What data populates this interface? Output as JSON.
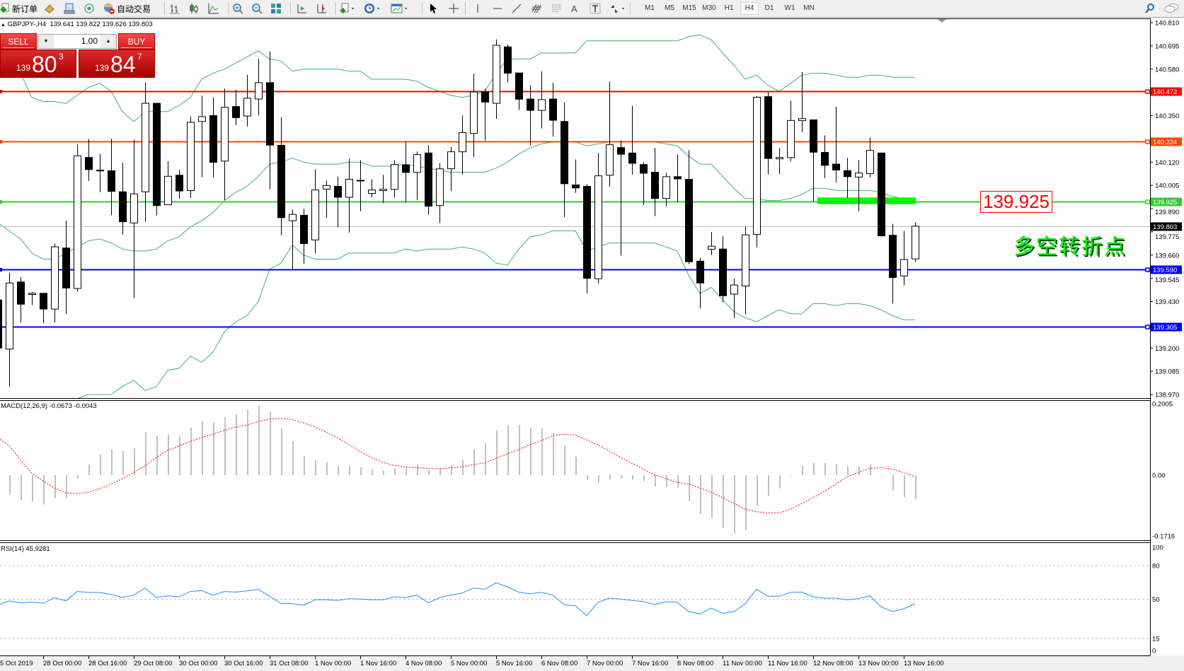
{
  "toolbar": {
    "new_order": "新订单",
    "auto_trading": "自动交易",
    "timeframes": [
      "M1",
      "M5",
      "M15",
      "M30",
      "H1",
      "H4",
      "D1",
      "W1",
      "MN"
    ],
    "selected_timeframe": "H4",
    "icons": [
      "new-order-icon",
      "history-icon",
      "terminal-icon",
      "signal-icon",
      "auto-trading-icon",
      "bar-chart-icon",
      "candlestick-icon",
      "line-chart-icon",
      "zoom-in-icon",
      "zoom-out-icon",
      "tile-windows-icon",
      "chart-shift-icon",
      "autoscroll-icon",
      "indicators-icon",
      "periods-icon",
      "templates-icon",
      "cursor-icon",
      "crosshair-icon",
      "vertical-line-icon",
      "horizontal-line-icon",
      "trendline-icon",
      "fibonacci-icon",
      "fibo-fan-icon",
      "text-icon",
      "text-label-icon",
      "arrows-icon",
      "search-icon",
      "chat-icon"
    ]
  },
  "header": {
    "symbol": "GBPJPY-,H4",
    "ohlc": "139.641 139.822 139.626 139.803"
  },
  "trade_panel": {
    "sell_label": "SELL",
    "buy_label": "BUY",
    "lots": "1.00",
    "sell_price": {
      "prefix": "139",
      "big": "80",
      "sup": "3"
    },
    "buy_price": {
      "prefix": "139",
      "big": "84",
      "sup": "7"
    },
    "color": "#d42020"
  },
  "annotations": {
    "price_box": "139.925",
    "pivot_text": "多空转折点",
    "zone_color": "#00ff00"
  },
  "indicators": {
    "macd_label": "MACD(12,26,9) -0.0673 -0.0043",
    "rsi_label": "RSI(14) 45.9281"
  },
  "chart_data": {
    "type": "candlestick",
    "symbol": "GBPJPY",
    "timeframe": "H4",
    "price_axis": {
      "ylim": [
        138.97,
        140.81
      ],
      "ticks": [
        "140.810",
        "140.695",
        "140.580",
        "140.350",
        "140.120",
        "140.005",
        "139.890",
        "139.775",
        "139.660",
        "139.545",
        "139.430",
        "139.200",
        "139.085",
        "138.970"
      ]
    },
    "time_axis_labels": [
      "5 Oct 2019",
      "28 Oct 00:00",
      "28 Oct 16:00",
      "29 Oct 08:00",
      "30 Oct 00:00",
      "30 Oct 16:00",
      "31 Oct 08:00",
      "1 Nov 00:00",
      "1 Nov 16:00",
      "4 Nov 08:00",
      "5 Nov 00:00",
      "5 Nov 16:00",
      "6 Nov 08:00",
      "7 Nov 00:00",
      "7 Nov 16:00",
      "8 Nov 08:00",
      "11 Nov 00:00",
      "11 Nov 16:00",
      "12 Nov 08:00",
      "13 Nov 00:00",
      "13 Nov 16:00"
    ],
    "ohlc": [
      [
        139.438,
        139.47,
        139.16,
        139.2
      ],
      [
        139.195,
        139.573,
        139.009,
        139.522
      ],
      [
        139.527,
        139.551,
        139.327,
        139.417
      ],
      [
        139.465,
        139.477,
        139.413,
        139.471
      ],
      [
        139.471,
        139.471,
        139.323,
        139.393
      ],
      [
        139.393,
        139.717,
        139.327,
        139.701
      ],
      [
        139.695,
        139.831,
        139.369,
        139.497
      ],
      [
        139.495,
        140.207,
        139.48,
        140.151
      ],
      [
        140.143,
        140.235,
        140.027,
        140.083
      ],
      [
        140.08,
        140.161,
        139.971,
        140.078
      ],
      [
        140.077,
        140.235,
        139.857,
        139.975
      ],
      [
        139.973,
        140.117,
        139.761,
        139.825
      ],
      [
        139.819,
        140.231,
        139.447,
        139.963
      ],
      [
        139.973,
        140.513,
        139.825,
        140.411
      ],
      [
        140.411,
        140.411,
        139.857,
        139.905
      ],
      [
        139.909,
        140.125,
        139.909,
        140.05
      ],
      [
        140.055,
        140.081,
        139.939,
        139.977
      ],
      [
        139.979,
        140.345,
        139.943,
        140.317
      ],
      [
        140.321,
        140.449,
        140.045,
        140.345
      ],
      [
        140.35,
        140.44,
        140.045,
        140.119
      ],
      [
        140.125,
        140.484,
        139.933,
        140.391
      ],
      [
        140.395,
        140.478,
        140.303,
        140.34
      ],
      [
        140.348,
        140.552,
        140.296,
        140.436
      ],
      [
        140.432,
        140.632,
        140.351,
        140.513
      ],
      [
        140.513,
        140.668,
        139.985,
        140.204
      ],
      [
        140.203,
        140.342,
        139.759,
        139.845
      ],
      [
        139.83,
        139.885,
        139.591,
        139.861
      ],
      [
        139.857,
        139.889,
        139.618,
        139.717
      ],
      [
        139.735,
        140.084,
        139.668,
        139.982
      ],
      [
        139.986,
        140.029,
        139.845,
        140.004
      ],
      [
        140.0,
        140.048,
        139.797,
        139.946
      ],
      [
        139.946,
        140.137,
        139.771,
        140.035
      ],
      [
        140.03,
        140.13,
        139.877,
        140.027
      ],
      [
        139.965,
        140.036,
        139.946,
        139.982
      ],
      [
        139.979,
        140.057,
        139.917,
        139.986
      ],
      [
        139.985,
        140.13,
        139.945,
        140.108
      ],
      [
        140.106,
        140.221,
        139.921,
        140.069
      ],
      [
        140.069,
        140.172,
        139.933,
        140.157
      ],
      [
        140.165,
        140.203,
        139.859,
        139.902
      ],
      [
        139.905,
        140.115,
        139.818,
        140.087
      ],
      [
        140.087,
        140.195,
        139.976,
        140.171
      ],
      [
        140.171,
        140.35,
        140.059,
        140.266
      ],
      [
        140.262,
        140.557,
        140.145,
        140.467
      ],
      [
        140.467,
        140.484,
        140.226,
        140.417
      ],
      [
        140.411,
        140.727,
        140.334,
        140.698
      ],
      [
        140.69,
        140.701,
        140.515,
        140.56
      ],
      [
        140.561,
        140.561,
        140.377,
        140.431
      ],
      [
        140.432,
        140.5,
        140.203,
        140.376
      ],
      [
        140.376,
        140.569,
        140.287,
        140.429
      ],
      [
        140.432,
        140.513,
        140.246,
        140.327
      ],
      [
        140.321,
        140.416,
        139.849,
        140.013
      ],
      [
        140.007,
        140.133,
        139.968,
        139.992
      ],
      [
        140.0,
        140.011,
        139.471,
        139.545
      ],
      [
        139.543,
        140.165,
        139.519,
        140.052
      ],
      [
        140.055,
        140.519,
        139.999,
        140.206
      ],
      [
        140.192,
        140.228,
        139.657,
        140.159
      ],
      [
        140.165,
        140.399,
        140.058,
        140.114
      ],
      [
        140.108,
        140.119,
        139.908,
        140.065
      ],
      [
        140.07,
        140.19,
        139.853,
        139.94
      ],
      [
        139.94,
        140.067,
        139.902,
        140.048
      ],
      [
        140.048,
        140.157,
        139.922,
        140.037
      ],
      [
        140.035,
        140.179,
        139.615,
        139.627
      ],
      [
        139.63,
        139.645,
        139.396,
        139.522
      ],
      [
        139.689,
        139.774,
        139.66,
        139.704
      ],
      [
        139.69,
        139.754,
        139.426,
        139.459
      ],
      [
        139.467,
        139.544,
        139.347,
        139.512
      ],
      [
        139.507,
        139.802,
        139.368,
        139.76
      ],
      [
        139.762,
        140.446,
        139.699,
        140.441
      ],
      [
        140.444,
        140.467,
        140.058,
        140.138
      ],
      [
        140.136,
        140.19,
        140.061,
        140.143
      ],
      [
        140.142,
        140.423,
        140.124,
        140.326
      ],
      [
        140.325,
        140.566,
        140.268,
        140.335
      ],
      [
        140.329,
        140.329,
        139.925,
        140.169
      ],
      [
        140.168,
        140.252,
        140.041,
        140.104
      ],
      [
        140.11,
        140.395,
        140.019,
        140.081
      ],
      [
        140.078,
        140.141,
        139.943,
        140.048
      ],
      [
        140.046,
        140.13,
        139.877,
        140.066
      ],
      [
        140.063,
        140.242,
        140.045,
        140.178
      ],
      [
        140.165,
        140.165,
        139.755,
        139.755
      ],
      [
        139.758,
        139.815,
        139.42,
        139.549
      ],
      [
        139.557,
        139.778,
        139.51,
        139.638
      ],
      [
        139.641,
        139.822,
        139.626,
        139.803
      ]
    ],
    "bollinger": {
      "color": "#3cb371",
      "upper": [
        140.7,
        140.64,
        140.56,
        140.44,
        140.42,
        140.42,
        140.41,
        140.45,
        140.49,
        140.51,
        140.47,
        140.37,
        140.32,
        140.37,
        140.37,
        140.37,
        140.4,
        140.44,
        140.53,
        140.56,
        140.58,
        140.61,
        140.64,
        140.67,
        140.63,
        140.62,
        140.57,
        140.58,
        140.58,
        140.58,
        140.58,
        140.57,
        140.57,
        140.53,
        140.53,
        140.53,
        140.53,
        140.52,
        140.49,
        140.47,
        140.45,
        140.44,
        140.45,
        140.47,
        140.56,
        140.63,
        140.63,
        140.63,
        140.66,
        140.66,
        140.66,
        140.66,
        140.72,
        140.72,
        140.72,
        140.72,
        140.72,
        140.72,
        140.72,
        140.72,
        140.72,
        140.74,
        140.75,
        140.725,
        140.66,
        140.6,
        140.53,
        140.55,
        140.5,
        140.47,
        140.51,
        140.55,
        140.56,
        140.56,
        140.55,
        140.54,
        140.54,
        140.55,
        140.55,
        140.54,
        140.54,
        140.54
      ],
      "middle": [
        139.82,
        139.78,
        139.74,
        139.67,
        139.64,
        139.64,
        139.67,
        139.7,
        139.73,
        139.74,
        139.72,
        139.69,
        139.68,
        139.68,
        139.69,
        139.73,
        139.75,
        139.8,
        139.83,
        139.87,
        139.93,
        139.97,
        140.0,
        140.05,
        140.11,
        140.12,
        140.14,
        140.12,
        140.11,
        140.11,
        140.11,
        140.12,
        140.12,
        140.1,
        140.1,
        140.1,
        140.11,
        140.1,
        140.09,
        140.08,
        140.07,
        140.07,
        140.07,
        140.07,
        140.09,
        140.12,
        140.16,
        140.19,
        140.21,
        140.22,
        140.22,
        140.22,
        140.2,
        140.21,
        140.22,
        140.22,
        140.22,
        140.22,
        140.22,
        140.21,
        140.2,
        140.15,
        140.11,
        140.11,
        140.05,
        139.99,
        139.94,
        139.94,
        139.93,
        139.93,
        139.94,
        139.96,
        139.99,
        139.99,
        139.98,
        139.98,
        139.98,
        139.98,
        139.97,
        139.95,
        139.94,
        139.94
      ],
      "lower": [
        138.94,
        138.92,
        138.92,
        138.9,
        138.86,
        138.86,
        138.93,
        138.95,
        138.97,
        138.97,
        138.97,
        139.01,
        139.04,
        138.99,
        139.01,
        139.09,
        139.1,
        139.16,
        139.13,
        139.18,
        139.28,
        139.33,
        139.36,
        139.43,
        139.59,
        139.62,
        139.71,
        139.66,
        139.64,
        139.64,
        139.64,
        139.67,
        139.67,
        139.67,
        139.67,
        139.67,
        139.69,
        139.68,
        139.69,
        139.69,
        139.69,
        139.7,
        139.69,
        139.67,
        139.62,
        139.61,
        139.69,
        139.75,
        139.76,
        139.78,
        139.78,
        139.78,
        139.68,
        139.7,
        139.72,
        139.72,
        139.72,
        139.72,
        139.72,
        139.7,
        139.68,
        139.56,
        139.47,
        139.5,
        139.44,
        139.38,
        139.35,
        139.33,
        139.36,
        139.39,
        139.37,
        139.37,
        139.42,
        139.42,
        139.41,
        139.42,
        139.42,
        139.41,
        139.39,
        139.36,
        139.34,
        139.34
      ]
    },
    "horizontal_lines": [
      {
        "price": 140.472,
        "label": "140.472",
        "color": "#ff0000"
      },
      {
        "price": 140.224,
        "label": "140.224",
        "color": "#ff4500"
      },
      {
        "price": 139.925,
        "label": "139.925",
        "color": "#32cd32"
      },
      {
        "price": 139.59,
        "label": "139.590",
        "color": "#0000ff"
      },
      {
        "price": 139.305,
        "label": "139.305",
        "color": "#0000ff"
      }
    ],
    "bid_line": {
      "price": 139.803,
      "label": "139.803",
      "color": "#c0c0c0"
    },
    "zone": {
      "price_top": 139.945,
      "price_bottom": 139.912,
      "color": "#00ff00"
    },
    "macd": {
      "params": "12,26,9",
      "ylim": [
        -0.1716,
        0.2005
      ],
      "ticks": [
        "0.2005",
        "0.00",
        "-0.1716"
      ],
      "hist_color": "#c0c0c0",
      "signal_color": "#ff0000",
      "histogram": [
        -0.05,
        -0.056,
        -0.07,
        -0.075,
        -0.083,
        -0.065,
        -0.065,
        -0.01,
        0.03,
        0.058,
        0.072,
        0.068,
        0.076,
        0.121,
        0.111,
        0.114,
        0.109,
        0.134,
        0.152,
        0.148,
        0.163,
        0.171,
        0.184,
        0.195,
        0.179,
        0.132,
        0.096,
        0.054,
        0.042,
        0.036,
        0.025,
        0.025,
        0.022,
        0.017,
        0.012,
        0.019,
        0.021,
        0.03,
        0.015,
        0.018,
        0.028,
        0.042,
        0.072,
        0.09,
        0.126,
        0.141,
        0.141,
        0.134,
        0.132,
        0.119,
        0.084,
        0.052,
        -0.013,
        -0.021,
        -0.013,
        -0.01,
        -0.012,
        -0.017,
        -0.032,
        -0.033,
        -0.035,
        -0.073,
        -0.109,
        -0.121,
        -0.149,
        -0.164,
        -0.155,
        -0.087,
        -0.059,
        -0.037,
        -0.001,
        0.026,
        0.034,
        0.034,
        0.032,
        0.026,
        0.024,
        0.03,
        -0.001,
        -0.043,
        -0.062,
        -0.0673
      ],
      "signal": [
        0.105,
        0.083,
        0.043,
        0.005,
        -0.017,
        -0.036,
        -0.05,
        -0.052,
        -0.048,
        -0.038,
        -0.025,
        -0.01,
        0.007,
        0.027,
        0.05,
        0.07,
        0.082,
        0.095,
        0.106,
        0.115,
        0.126,
        0.135,
        0.141,
        0.151,
        0.158,
        0.16,
        0.156,
        0.147,
        0.136,
        0.121,
        0.105,
        0.086,
        0.066,
        0.05,
        0.036,
        0.027,
        0.023,
        0.021,
        0.019,
        0.018,
        0.021,
        0.023,
        0.03,
        0.034,
        0.048,
        0.06,
        0.072,
        0.086,
        0.097,
        0.111,
        0.115,
        0.113,
        0.099,
        0.085,
        0.068,
        0.05,
        0.033,
        0.017,
        0.001,
        -0.01,
        -0.02,
        -0.025,
        -0.036,
        -0.048,
        -0.063,
        -0.08,
        -0.096,
        -0.103,
        -0.106,
        -0.106,
        -0.096,
        -0.08,
        -0.063,
        -0.045,
        -0.025,
        -0.005,
        0.008,
        0.019,
        0.021,
        0.017,
        0.007,
        -0.0043
      ]
    },
    "rsi": {
      "period": 14,
      "ylim": [
        0,
        100
      ],
      "levels": [
        80,
        50,
        15
      ],
      "ticks": [
        "100",
        "80",
        "50",
        "15",
        "0"
      ],
      "color": "#1e90ff",
      "values": [
        45.0,
        48.5,
        46.8,
        47.4,
        46.4,
        51.4,
        48.5,
        56.9,
        56.2,
        56.0,
        54.3,
        51.6,
        53.7,
        60.0,
        51.6,
        53.1,
        52.2,
        56.9,
        57.7,
        53.7,
        56.9,
        56.4,
        57.5,
        58.8,
        52.7,
        46.4,
        46.1,
        44.7,
        49.5,
        49.5,
        48.9,
        50.5,
        50.2,
        49.5,
        49.5,
        52.2,
        51.4,
        53.7,
        46.8,
        51.4,
        53.7,
        55.6,
        60.0,
        58.9,
        64.7,
        61.1,
        56.4,
        54.8,
        56.2,
        53.7,
        45.3,
        44.2,
        35.4,
        47.4,
        51.0,
        50.2,
        48.9,
        48.0,
        45.3,
        47.8,
        47.4,
        39.0,
        36.9,
        42.1,
        37.5,
        39.0,
        45.9,
        59.0,
        52.7,
        52.7,
        56.2,
        56.4,
        52.2,
        51.0,
        51.0,
        49.5,
        50.5,
        53.1,
        43.2,
        39.0,
        41.5,
        45.9281
      ]
    }
  }
}
